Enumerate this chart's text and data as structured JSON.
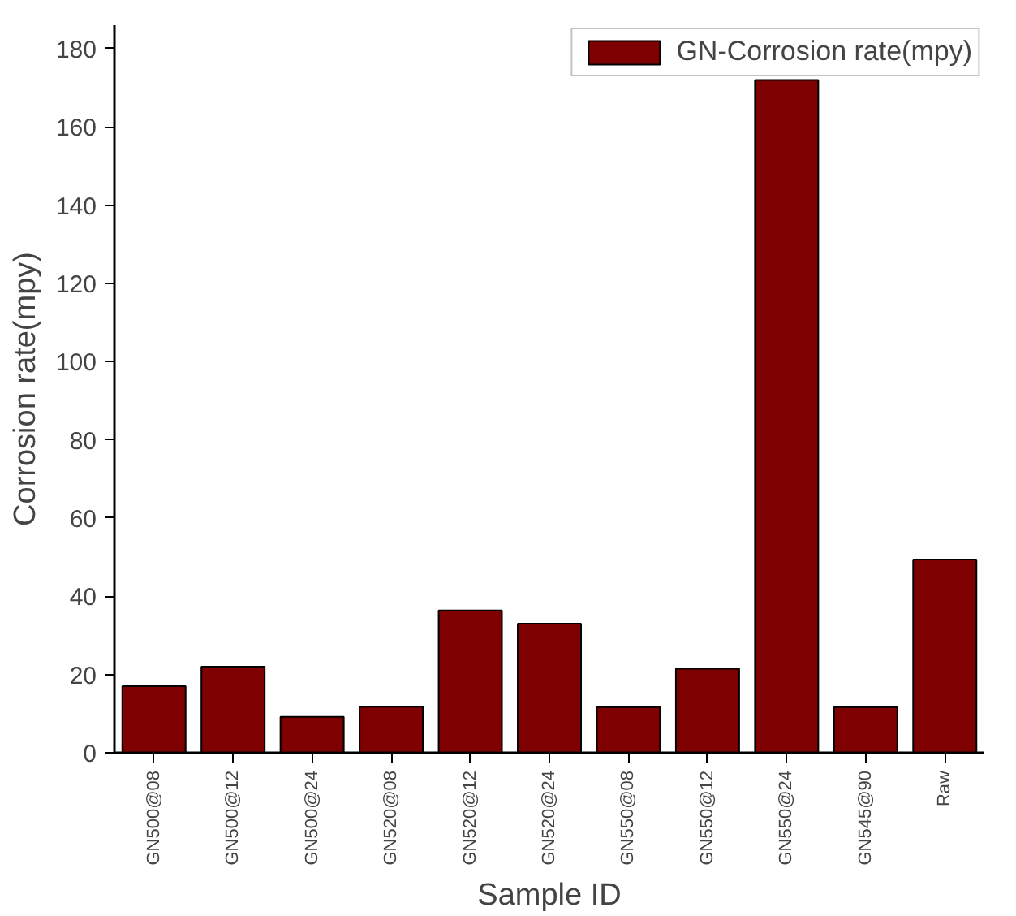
{
  "chart_data": {
    "type": "bar",
    "xlabel": "Sample ID",
    "ylabel": "Corrosion rate(mpy)",
    "categories": [
      "GN500@08",
      "GN500@12",
      "GN500@24",
      "GN520@08",
      "GN520@12",
      "GN520@24",
      "GN550@08",
      "GN550@12",
      "GN550@24",
      "GN545@90",
      "Raw"
    ],
    "series": [
      {
        "name": "GN-Corrosion rate(mpy)",
        "color": "#7f0000",
        "values": [
          17,
          22,
          9.2,
          11.8,
          36.4,
          33,
          11.7,
          21.5,
          172,
          11.7,
          49.4
        ]
      }
    ],
    "ylim": [
      0,
      186
    ],
    "yticks": [
      0,
      20,
      40,
      60,
      80,
      100,
      120,
      140,
      160,
      180
    ],
    "grid": false,
    "legend": "top right"
  }
}
